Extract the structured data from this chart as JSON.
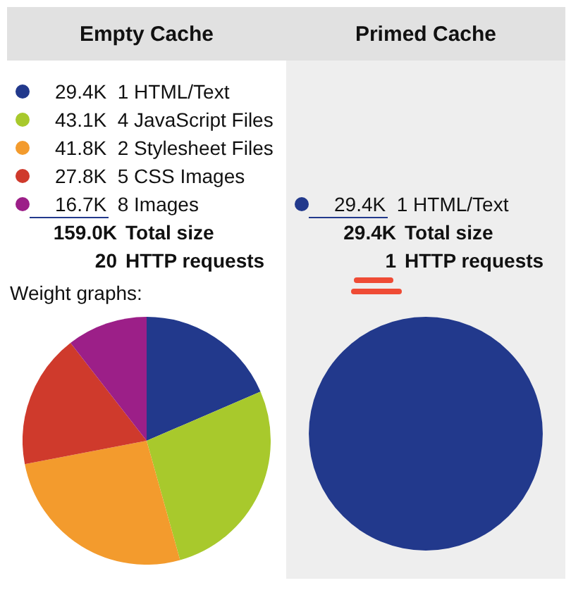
{
  "chart_data": [
    {
      "type": "pie",
      "title": "Empty Cache",
      "subtitle": "Weight graphs:",
      "legend": "top",
      "categories": [
        "1 HTML/Text",
        "4 JavaScript Files",
        "2 Stylesheet Files",
        "5 CSS Images",
        "8 Images"
      ],
      "values": [
        29.4,
        43.1,
        41.8,
        27.8,
        16.7
      ],
      "value_labels": [
        "29.4K",
        "43.1K",
        "41.8K",
        "27.8K",
        "16.7K"
      ],
      "colors": [
        "#22398c",
        "#a8c92c",
        "#f39b2d",
        "#cf3a2c",
        "#9c1f88"
      ],
      "annotations": [
        "159.0K Total size",
        "20 HTTP requests"
      ]
    },
    {
      "type": "pie",
      "title": "Primed Cache",
      "legend": "top",
      "categories": [
        "1 HTML/Text"
      ],
      "values": [
        29.4
      ],
      "value_labels": [
        "29.4K"
      ],
      "colors": [
        "#22398c"
      ],
      "annotations": [
        "29.4K Total size",
        "1 HTTP requests"
      ]
    }
  ]
}
